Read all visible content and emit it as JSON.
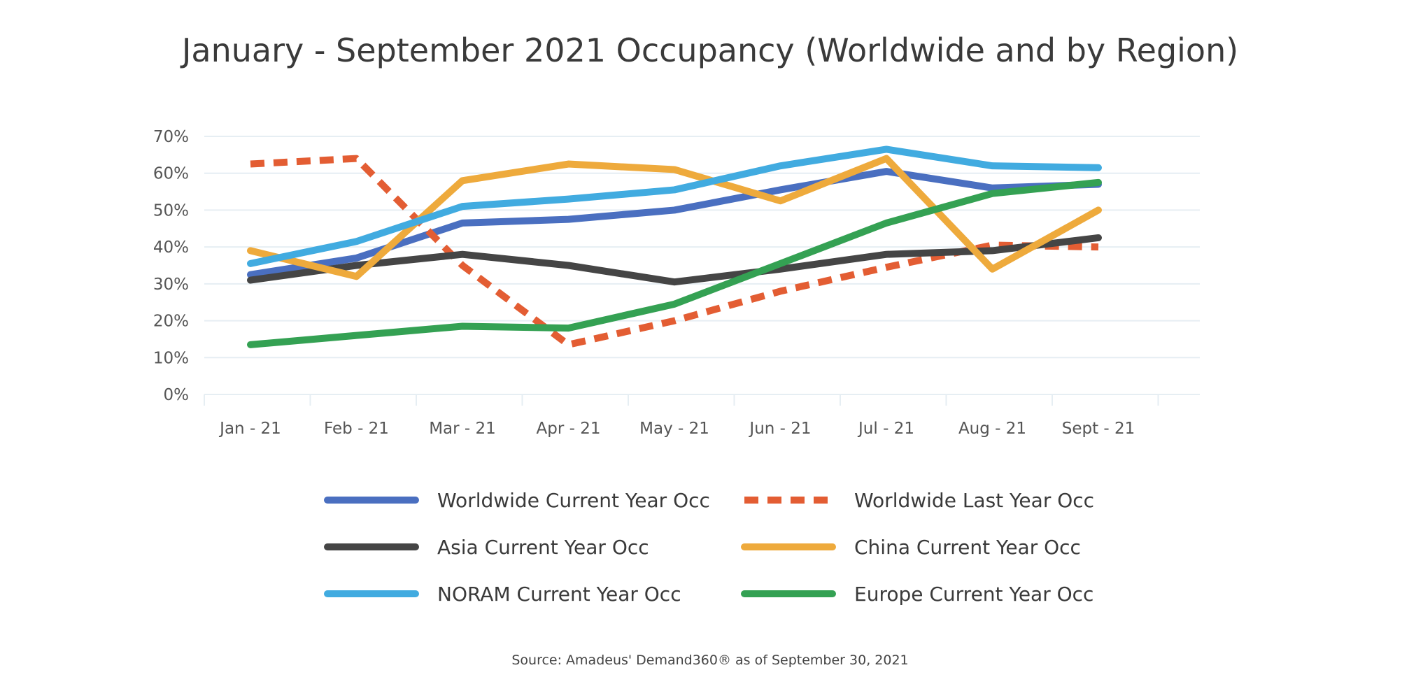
{
  "chart_data": {
    "type": "line",
    "title": "January - September 2021 Occupancy (Worldwide and by Region)",
    "categories": [
      "Jan - 21",
      "Feb - 21",
      "Mar - 21",
      "Apr - 21",
      "May - 21",
      "Jun - 21",
      "Jul - 21",
      "Aug - 21",
      "Sept - 21"
    ],
    "ylim": [
      0,
      70
    ],
    "yticks": [
      0,
      10,
      20,
      30,
      40,
      50,
      60,
      70
    ],
    "ytick_labels": [
      "0%",
      "10%",
      "20%",
      "30%",
      "40%",
      "50%",
      "60%",
      "70%"
    ],
    "grid": true,
    "legend_position": "bottom",
    "series": [
      {
        "name": "Worldwide Current Year Occ",
        "color": "#4a6fc0",
        "dashed": false,
        "values": [
          32.5,
          37,
          46.5,
          47.5,
          50,
          55.5,
          60.5,
          56,
          57
        ]
      },
      {
        "name": "Worldwide Last Year Occ",
        "color": "#e35d33",
        "dashed": true,
        "values": [
          62.5,
          64,
          35,
          13.5,
          20,
          28,
          34.5,
          40.5,
          40
        ]
      },
      {
        "name": "Asia Current Year Occ",
        "color": "#454545",
        "dashed": false,
        "values": [
          31,
          35,
          38,
          35,
          30.5,
          34,
          38,
          39,
          42.5
        ]
      },
      {
        "name": "China Current Year Occ",
        "color": "#eeaa3c",
        "dashed": false,
        "values": [
          39,
          32,
          58,
          62.5,
          61,
          52.5,
          64,
          34,
          50
        ]
      },
      {
        "name": "NORAM Current Year Occ",
        "color": "#41abe0",
        "dashed": false,
        "values": [
          35.5,
          41.5,
          51,
          53,
          55.5,
          62,
          66.5,
          62,
          61.5
        ]
      },
      {
        "name": "Europe Current Year Occ",
        "color": "#34a153",
        "dashed": false,
        "values": [
          13.5,
          16,
          18.5,
          18,
          24.5,
          35.5,
          46.5,
          54.5,
          57.5
        ]
      }
    ]
  },
  "source": "Source: Amadeus' Demand360® as of September 30, 2021"
}
